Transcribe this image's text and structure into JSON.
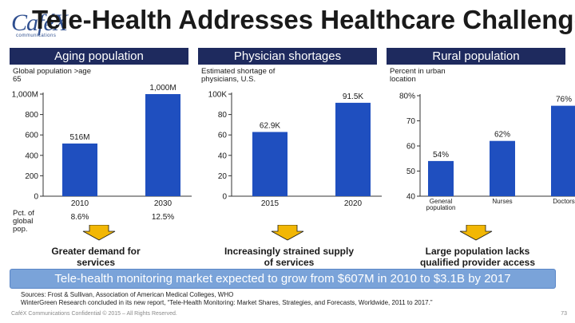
{
  "header": {
    "logo_text": "CaféX",
    "logo_sub": "communications",
    "title": "Tele-Health Addresses Healthcare Challenges"
  },
  "chart_data": [
    {
      "type": "bar",
      "panel_title": "Aging population",
      "ylabel": "Global population >age 65",
      "categories": [
        "2010",
        "2030"
      ],
      "values": [
        516,
        1000
      ],
      "data_labels": [
        "516M",
        "1,000M"
      ],
      "ylim": [
        0,
        1000
      ],
      "yticks": [
        0,
        200,
        400,
        600,
        800,
        1000
      ],
      "ytick_labels": [
        "0",
        "200",
        "400",
        "600",
        "800",
        "1,000M"
      ],
      "extra_row_label": "Pct. of global pop.",
      "extra_row_values": [
        "8.6%",
        "12.5%"
      ],
      "color": "#1f4fbf"
    },
    {
      "type": "bar",
      "panel_title": "Physician shortages",
      "ylabel": "Estimated shortage of physicians, U.S.",
      "categories": [
        "2015",
        "2020"
      ],
      "values": [
        62.9,
        91.5
      ],
      "data_labels": [
        "62.9K",
        "91.5K"
      ],
      "ylim": [
        0,
        100
      ],
      "yticks": [
        0,
        20,
        40,
        60,
        80,
        100
      ],
      "ytick_labels": [
        "0",
        "20",
        "40",
        "60",
        "80",
        "100K"
      ],
      "color": "#1f4fbf"
    },
    {
      "type": "bar",
      "panel_title": "Rural population",
      "ylabel": "Percent in urban location",
      "categories": [
        "General population",
        "Nurses",
        "Doctors"
      ],
      "values": [
        54,
        62,
        76
      ],
      "data_labels": [
        "54%",
        "62%",
        "76%"
      ],
      "ylim": [
        40,
        80
      ],
      "yticks": [
        40,
        50,
        60,
        70,
        80
      ],
      "ytick_labels": [
        "40",
        "50",
        "60",
        "70",
        "80%"
      ],
      "color": "#1f4fbf"
    }
  ],
  "descriptions": [
    "Greater demand for services",
    "Increasingly strained supply of services",
    "Large population lacks qualified provider access"
  ],
  "banner": "Tele-health monitoring market expected to grow from $607M in 2010 to $3.1B by 2017",
  "sources": {
    "line1": "Sources: Frost & Sullivan, Association of American Medical Colleges, WHO",
    "line2": "WinterGreen Research concluded in its new report, “Tele-Health Monitoring: Market Shares, Strategies, and Forecasts, Worldwide, 2011 to 2017.”"
  },
  "footer": {
    "confidential": "CaféX Communications Confidential © 2015 – All Rights Reserved.",
    "page_number": "73"
  },
  "colors": {
    "header_bar": "#1e2a5e",
    "bar": "#1f4fbf",
    "arrow": "#f2b705",
    "banner": "#7aa3d9"
  }
}
